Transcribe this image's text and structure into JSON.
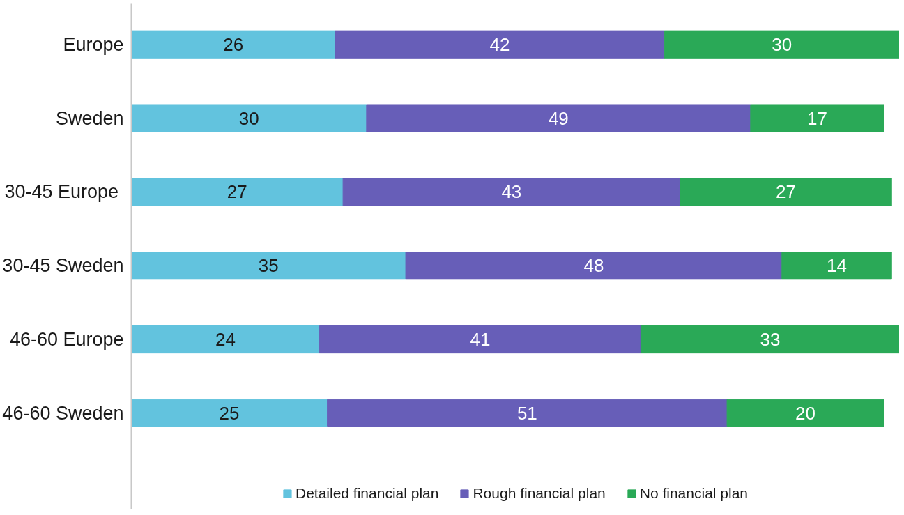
{
  "chart_data": {
    "type": "bar",
    "orientation": "horizontal",
    "stacked": true,
    "data_labels": true,
    "legend": "bottom",
    "grid": false,
    "tick_labels": "y",
    "categories": [
      "Europe",
      "Sweden",
      "30-45  Europe",
      "30-45 Sweden",
      "46-60 Europe",
      "46-60 Sweden"
    ],
    "series": [
      {
        "name": "Detailed financial plan",
        "color": "#62c3de",
        "values": [
          26,
          30,
          27,
          35,
          24,
          25
        ]
      },
      {
        "name": "Rough financial plan",
        "color": "#675eb8",
        "values": [
          42,
          49,
          43,
          48,
          41,
          51
        ]
      },
      {
        "name": "No financial plan",
        "color": "#2aa957",
        "values": [
          30,
          17,
          27,
          14,
          33,
          20
        ]
      }
    ]
  }
}
